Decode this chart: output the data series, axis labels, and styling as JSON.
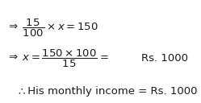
{
  "background_color": "#ffffff",
  "text_color": "#1a1a1a",
  "line1": "$\\Rightarrow\\;\\dfrac{15}{100}\\times x=150$",
  "line2_arrow_x": "$\\Rightarrow\\; x=\\dfrac{150\\times100}{15}=$",
  "line2_rs": "Rs. 1000",
  "line3_symbol": "$\\therefore$",
  "line3_text": " His monthly income = Rs. 1000",
  "font_size": 9.5,
  "fig_width": 2.49,
  "fig_height": 1.28,
  "dpi": 100
}
